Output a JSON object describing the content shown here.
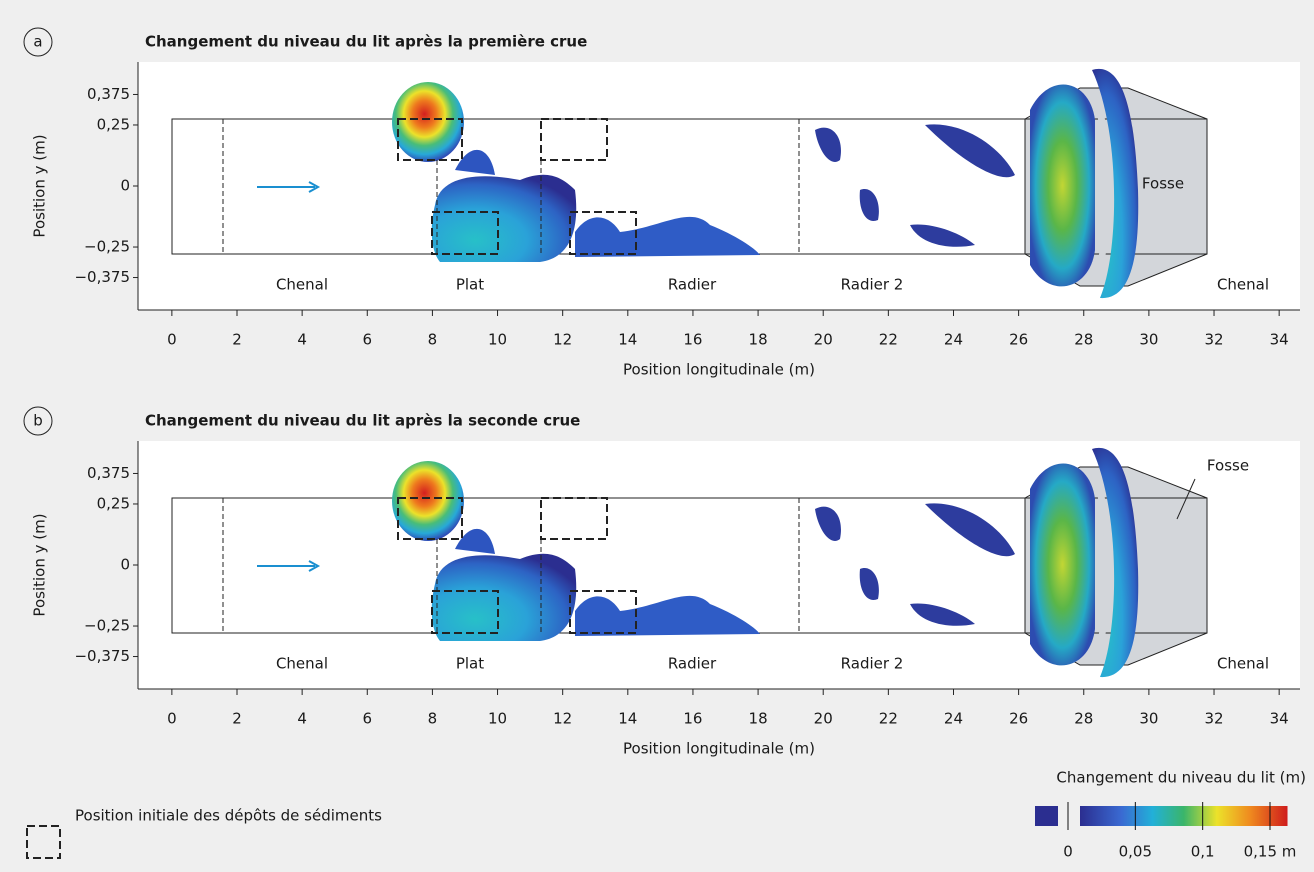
{
  "chart_data": [
    {
      "type": "heatmap",
      "panel_label": "a",
      "title": "Changement du niveau du lit après la première crue",
      "xlabel": "Position longitudinale (m)",
      "ylabel": "Position y (m)",
      "xlim": [
        -1.04,
        34.64
      ],
      "xticks": [
        0,
        2,
        4,
        6,
        8,
        10,
        12,
        14,
        16,
        18,
        20,
        22,
        24,
        26,
        28,
        30,
        32,
        34
      ],
      "ylim": [
        -0.508,
        0.508
      ],
      "yticks": [
        {
          "value": 0.375,
          "label": "0,375"
        },
        {
          "value": 0.25,
          "label": "0,25"
        },
        0,
        {
          "value": -0.25,
          "label": "−0,25"
        },
        {
          "value": -0.375,
          "label": "−0,375"
        }
      ],
      "annotations": [
        "Chenal",
        "Plat",
        "Radier",
        "Radier 2",
        "Chenal",
        "Fosse"
      ]
    },
    {
      "type": "heatmap",
      "panel_label": "b",
      "title": "Changement du niveau du lit après la seconde crue",
      "xlabel": "Position longitudinale (m)",
      "ylabel": "Position y (m)",
      "xlim": [
        -1.04,
        34.64
      ],
      "xticks": [
        0,
        2,
        4,
        6,
        8,
        10,
        12,
        14,
        16,
        18,
        20,
        22,
        24,
        26,
        28,
        30,
        32,
        34
      ],
      "ylim": [
        -0.508,
        0.508
      ],
      "yticks": [
        {
          "value": 0.375,
          "label": "0,375"
        },
        {
          "value": 0.25,
          "label": "0,25"
        },
        0,
        {
          "value": -0.25,
          "label": "−0,25"
        },
        {
          "value": -0.375,
          "label": "−0,375"
        }
      ],
      "annotations": [
        "Chenal",
        "Plat",
        "Radier",
        "Radier 2",
        "Chenal",
        "Fosse"
      ]
    }
  ],
  "legend": "Position initiale des dépôts de sédiments",
  "colorbar": {
    "label": "Changement du niveau du lit (m)",
    "lim": [
      0,
      0.163
    ],
    "ticks": [
      0,
      {
        "value": 0.05,
        "label": "0,05"
      },
      {
        "value": 0.1,
        "label": "0,1"
      },
      {
        "value": 0.15,
        "label": "0,15 m"
      }
    ]
  }
}
